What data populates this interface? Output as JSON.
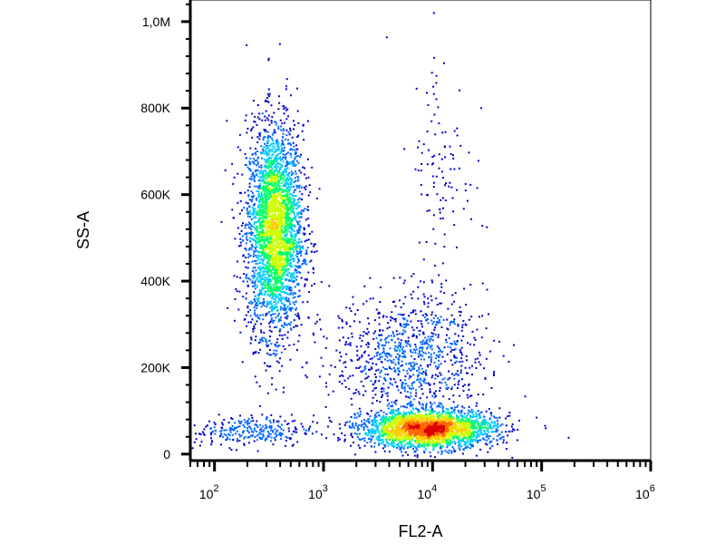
{
  "chart_data": {
    "type": "scatter",
    "style": "density-dot-plot",
    "xlabel": "FL2-A",
    "ylabel": "SS-A",
    "x_scale": "log",
    "x_range": [
      60,
      1000000
    ],
    "y_range": [
      -15000,
      1050000
    ],
    "x_ticks": [
      {
        "value": 100,
        "base": "10",
        "exp": "2"
      },
      {
        "value": 1000,
        "base": "10",
        "exp": "3"
      },
      {
        "value": 10000,
        "base": "10",
        "exp": "4"
      },
      {
        "value": 100000,
        "base": "10",
        "exp": "5"
      },
      {
        "value": 1000000,
        "base": "10",
        "exp": "6"
      }
    ],
    "y_ticks": [
      {
        "value": 0,
        "label": "0"
      },
      {
        "value": 200000,
        "label": "200K"
      },
      {
        "value": 400000,
        "label": "400K"
      },
      {
        "value": 600000,
        "label": "600K"
      },
      {
        "value": 800000,
        "label": "800K"
      },
      {
        "value": 1000000,
        "label": "1,0M"
      }
    ],
    "populations": [
      {
        "x_center": 350,
        "x_spread_log10": 0.13,
        "y_center": 520000,
        "y_spread": 120000,
        "count": 3200
      },
      {
        "x_center": 9000,
        "x_spread_log10": 0.3,
        "y_center": 60000,
        "y_spread": 22000,
        "count": 2600
      },
      {
        "x_center": 6000,
        "x_spread_log10": 0.35,
        "y_center": 230000,
        "y_spread": 70000,
        "count": 900
      },
      {
        "x_center": 200,
        "x_spread_log10": 0.3,
        "y_center": 55000,
        "y_spread": 18000,
        "count": 300
      },
      {
        "x_center": 12000,
        "x_spread_log10": 0.15,
        "y_center": 650000,
        "y_spread": 150000,
        "count": 120
      }
    ],
    "grid": false,
    "legend": "none",
    "colormap": [
      "#0000cc",
      "#0066ff",
      "#00ccff",
      "#00ff66",
      "#ccff00",
      "#ffcc00",
      "#ff6600",
      "#dd0000"
    ]
  }
}
